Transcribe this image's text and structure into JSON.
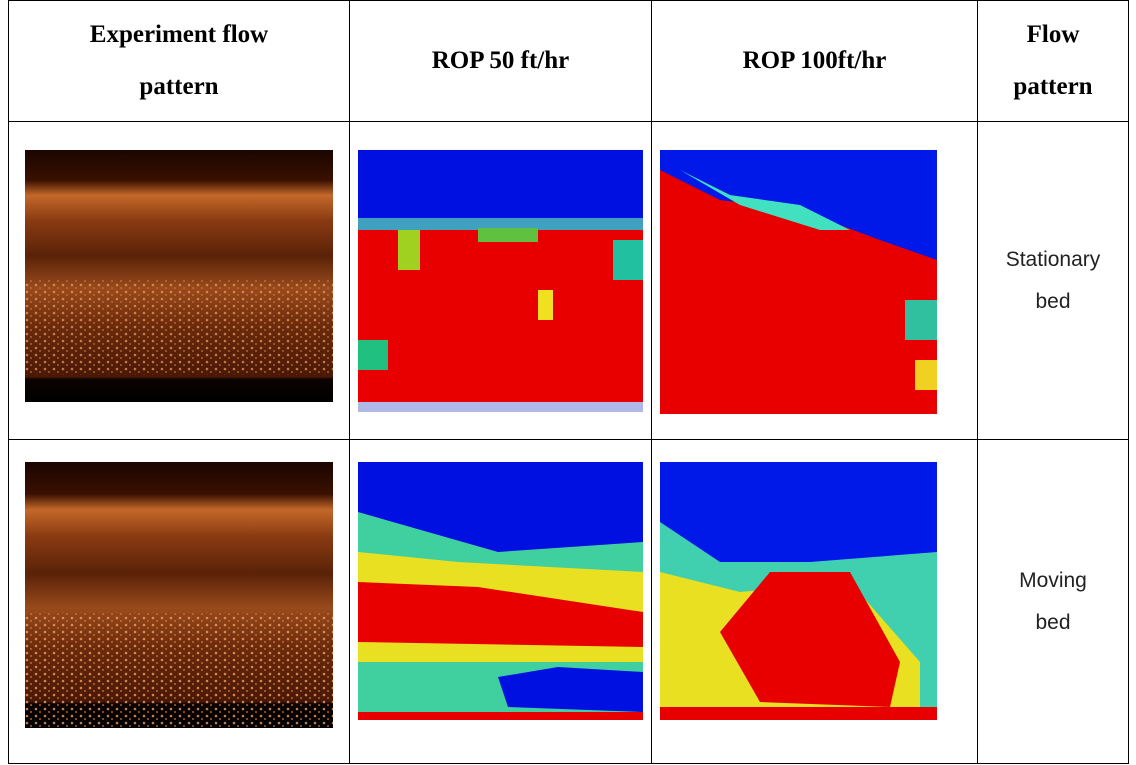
{
  "table": {
    "header": [
      "Experiment flow pattern",
      "ROP 50 ft/hr",
      "ROP 100ft/hr",
      "Flow pattern"
    ],
    "rows": [
      {
        "flow_pattern": "Stationary bed"
      },
      {
        "flow_pattern": "Moving bed"
      }
    ]
  }
}
